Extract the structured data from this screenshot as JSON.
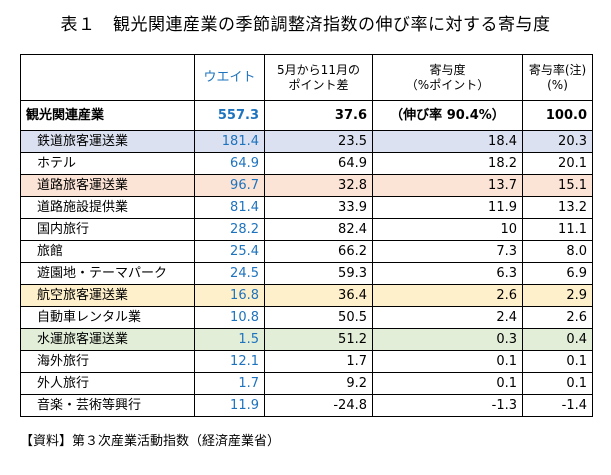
{
  "title": "表１　観光関連産業の季節調整済指数の伸び率に対する寄与度",
  "headers": {
    "name": "",
    "weight": "ウエイト",
    "diff_line1": "5月から11月の",
    "diff_line2": "ポイント差",
    "contrib_line1": "寄与度",
    "contrib_line2": "（%ポイント）",
    "ratio_line1": "寄与率(注)",
    "ratio_line2": "(%)"
  },
  "total": {
    "name": "観光関連産業",
    "weight": "557.3",
    "diff": "37.6",
    "contrib": "（伸び率 90.4%）",
    "ratio": "100.0"
  },
  "rows": [
    {
      "name": "鉄道旅客運送業",
      "weight": "181.4",
      "diff": "23.5",
      "contrib": "18.4",
      "ratio": "20.3"
    },
    {
      "name": "ホテル",
      "weight": "64.9",
      "diff": "64.9",
      "contrib": "18.2",
      "ratio": "20.1"
    },
    {
      "name": "道路旅客運送業",
      "weight": "96.7",
      "diff": "32.8",
      "contrib": "13.7",
      "ratio": "15.1"
    },
    {
      "name": "道路施設提供業",
      "weight": "81.4",
      "diff": "33.9",
      "contrib": "11.9",
      "ratio": "13.2"
    },
    {
      "name": "国内旅行",
      "weight": "28.2",
      "diff": "82.4",
      "contrib": "10",
      "ratio": "11.1"
    },
    {
      "name": "旅館",
      "weight": "25.4",
      "diff": "66.2",
      "contrib": "7.3",
      "ratio": "8.0"
    },
    {
      "name": "遊園地・テーマパーク",
      "weight": "24.5",
      "diff": "59.3",
      "contrib": "6.3",
      "ratio": "6.9"
    },
    {
      "name": "航空旅客運送業",
      "weight": "16.8",
      "diff": "36.4",
      "contrib": "2.6",
      "ratio": "2.9"
    },
    {
      "name": "自動車レンタル業",
      "weight": "10.8",
      "diff": "50.5",
      "contrib": "2.4",
      "ratio": "2.6"
    },
    {
      "name": "水運旅客運送業",
      "weight": "1.5",
      "diff": "51.2",
      "contrib": "0.3",
      "ratio": "0.4"
    },
    {
      "name": "海外旅行",
      "weight": "12.1",
      "diff": "1.7",
      "contrib": "0.1",
      "ratio": "0.1"
    },
    {
      "name": "外人旅行",
      "weight": "1.7",
      "diff": "9.2",
      "contrib": "0.1",
      "ratio": "0.1"
    },
    {
      "name": "音楽・芸術等興行",
      "weight": "11.9",
      "diff": "-24.8",
      "contrib": "-1.3",
      "ratio": "-1.4"
    }
  ],
  "source": "【資料】第３次産業活動指数（経済産業省）",
  "colors": {
    "weight_text": "#1e73be",
    "highlight_blue": "#dbe1f1",
    "highlight_orange": "#fbe3d6",
    "highlight_yellow": "#fff0cc",
    "highlight_green": "#e2eed8"
  }
}
